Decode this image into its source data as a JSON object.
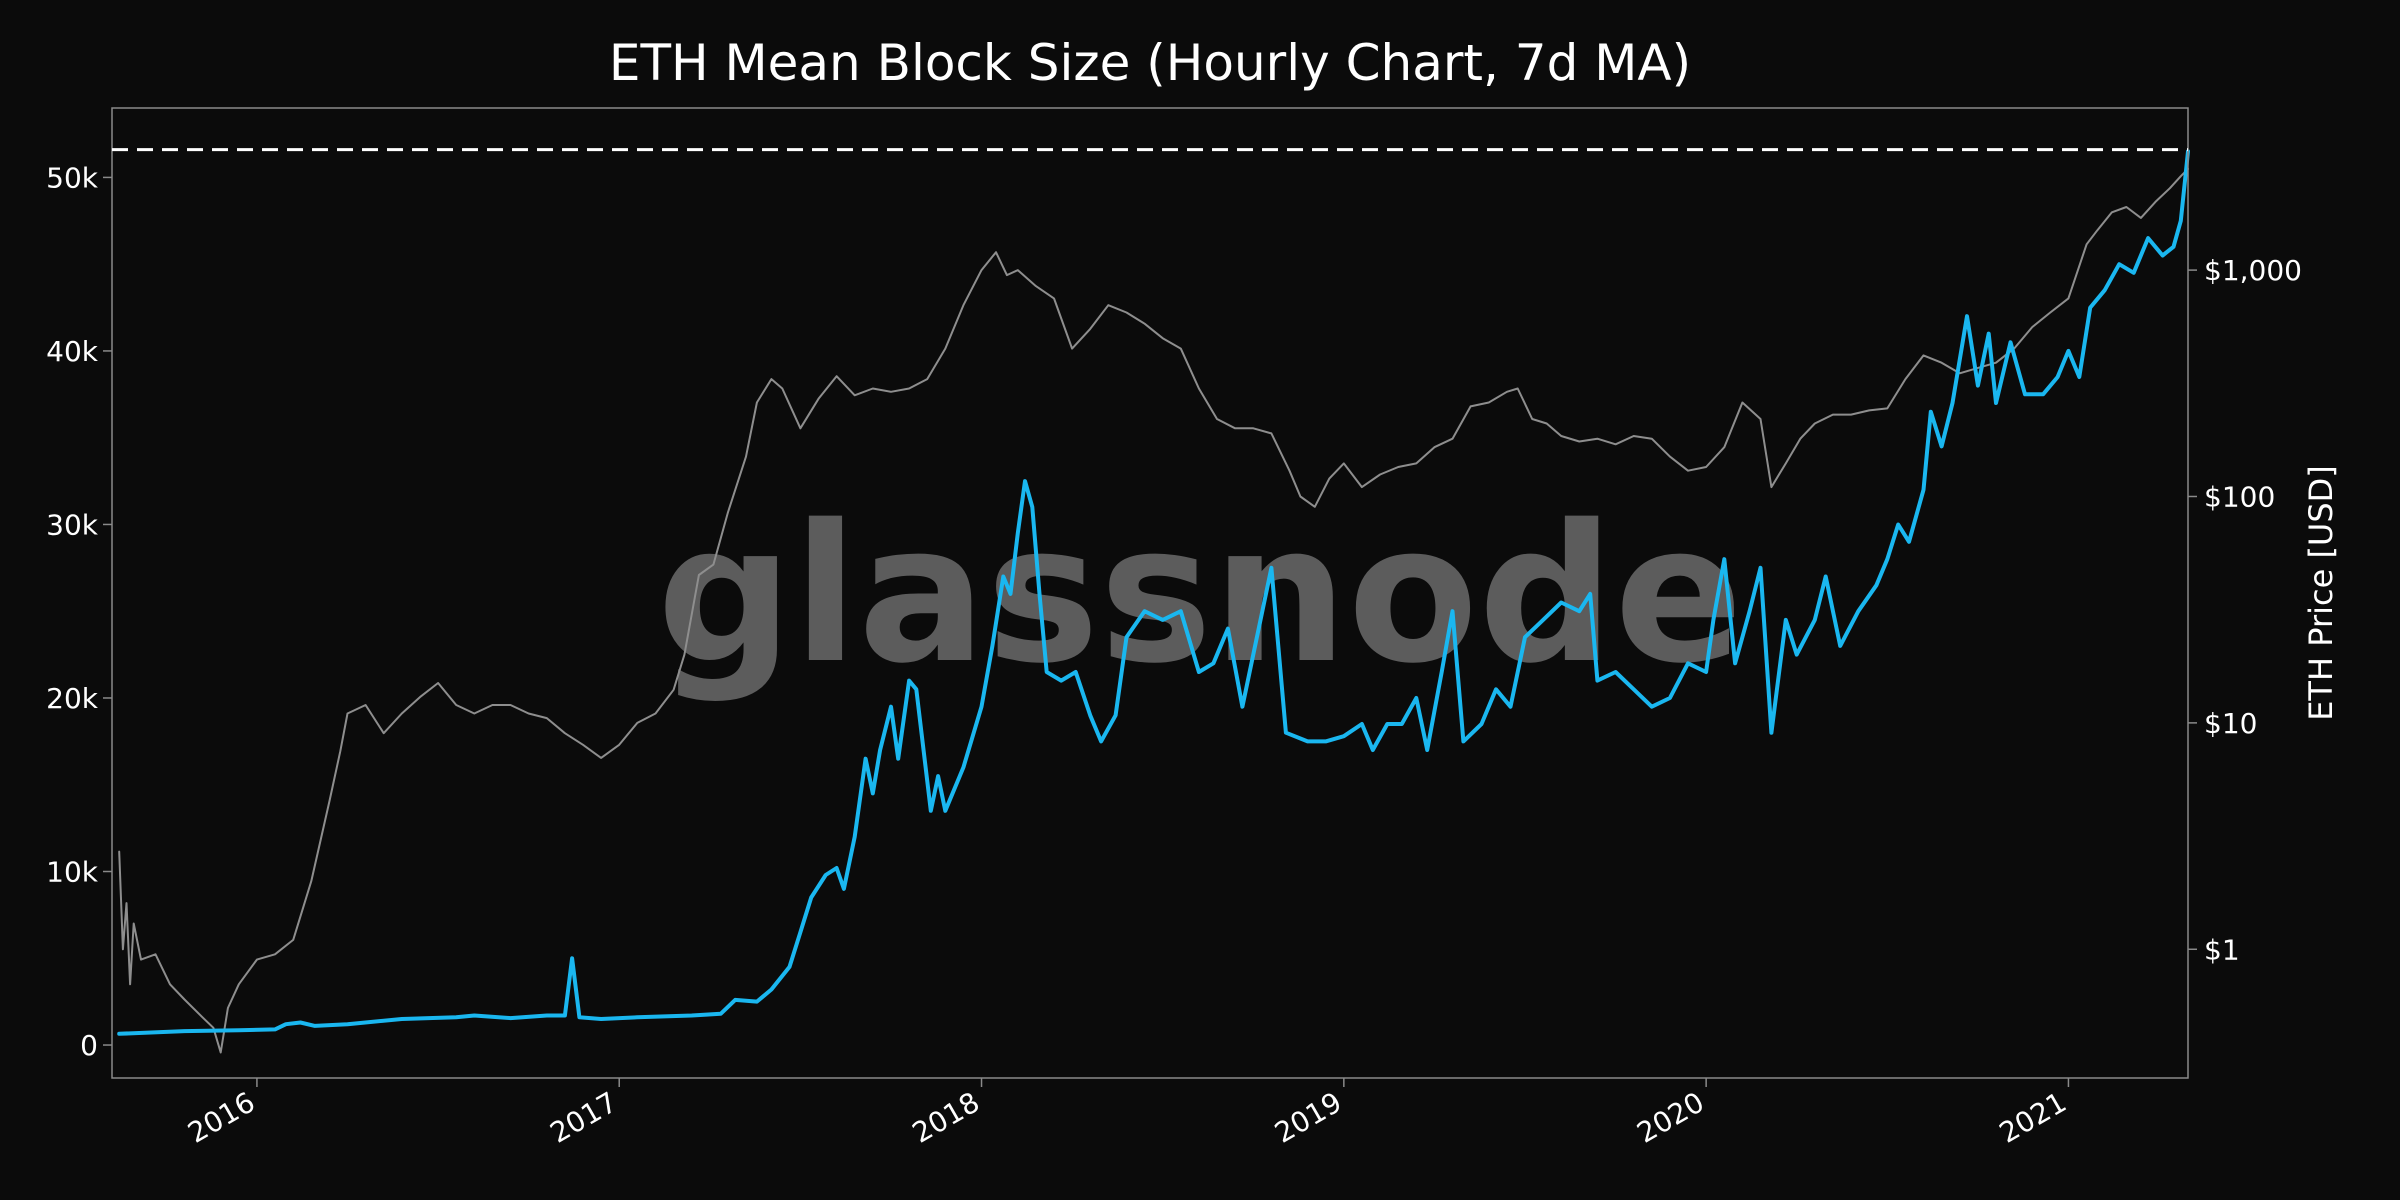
{
  "chart_data": {
    "type": "line",
    "title": "ETH Mean Block Size (Hourly Chart, 7d MA)",
    "watermark": "glassnode",
    "ylabel_left": "",
    "ylabel_right": "ETH Price [USD]",
    "x_ticks": [
      "2016",
      "2017",
      "2018",
      "2019",
      "2020",
      "2021"
    ],
    "x_tick_values": [
      2016.0,
      2017.0,
      2018.0,
      2019.0,
      2020.0,
      2021.0
    ],
    "xlim": [
      2015.6,
      2021.33
    ],
    "y_left_ticks": [
      "0",
      "10k",
      "20k",
      "30k",
      "40k",
      "50k"
    ],
    "y_left_tick_values": [
      0,
      10000,
      20000,
      30000,
      40000,
      50000
    ],
    "ylim_left": [
      -1900,
      54000
    ],
    "y_right_ticks": [
      "$1",
      "$10",
      "$100",
      "$1,000"
    ],
    "y_right_tick_values": [
      1,
      10,
      100,
      1000
    ],
    "ylim_right_log": [
      0.27,
      5200
    ],
    "reference_line": {
      "value": 51600,
      "style": "dashed"
    },
    "grid": false,
    "colors": {
      "background": "#0b0b0b",
      "block_size": "#1ab7f0",
      "price": "#8e8e8e",
      "frame": "#8a8a8a",
      "reference": "#ffffff"
    },
    "series": [
      {
        "axis": "left",
        "values": [
          [
            2015.62,
            650
          ],
          [
            2015.8,
            800
          ],
          [
            2015.95,
            850
          ],
          [
            2016.05,
            900
          ],
          [
            2016.08,
            1200
          ],
          [
            2016.12,
            1300
          ],
          [
            2016.16,
            1100
          ],
          [
            2016.25,
            1200
          ],
          [
            2016.4,
            1500
          ],
          [
            2016.55,
            1600
          ],
          [
            2016.6,
            1700
          ],
          [
            2016.7,
            1550
          ],
          [
            2016.8,
            1700
          ],
          [
            2016.85,
            1700
          ],
          [
            2016.87,
            5000
          ],
          [
            2016.89,
            1600
          ],
          [
            2016.95,
            1500
          ],
          [
            2017.05,
            1600
          ],
          [
            2017.2,
            1700
          ],
          [
            2017.28,
            1800
          ],
          [
            2017.32,
            2600
          ],
          [
            2017.38,
            2500
          ],
          [
            2017.42,
            3200
          ],
          [
            2017.47,
            4500
          ],
          [
            2017.5,
            6500
          ],
          [
            2017.53,
            8500
          ],
          [
            2017.57,
            9800
          ],
          [
            2017.6,
            10200
          ],
          [
            2017.62,
            9000
          ],
          [
            2017.65,
            12000
          ],
          [
            2017.68,
            16500
          ],
          [
            2017.7,
            14500
          ],
          [
            2017.72,
            17000
          ],
          [
            2017.75,
            19500
          ],
          [
            2017.77,
            16500
          ],
          [
            2017.8,
            21000
          ],
          [
            2017.82,
            20500
          ],
          [
            2017.86,
            13500
          ],
          [
            2017.88,
            15500
          ],
          [
            2017.9,
            13500
          ],
          [
            2017.95,
            16000
          ],
          [
            2018.0,
            19500
          ],
          [
            2018.03,
            23000
          ],
          [
            2018.06,
            27000
          ],
          [
            2018.08,
            26000
          ],
          [
            2018.1,
            29500
          ],
          [
            2018.12,
            32500
          ],
          [
            2018.14,
            31000
          ],
          [
            2018.16,
            26000
          ],
          [
            2018.18,
            21500
          ],
          [
            2018.22,
            21000
          ],
          [
            2018.26,
            21500
          ],
          [
            2018.3,
            19000
          ],
          [
            2018.33,
            17500
          ],
          [
            2018.37,
            19000
          ],
          [
            2018.4,
            23500
          ],
          [
            2018.45,
            25000
          ],
          [
            2018.5,
            24500
          ],
          [
            2018.55,
            25000
          ],
          [
            2018.6,
            21500
          ],
          [
            2018.64,
            22000
          ],
          [
            2018.68,
            24000
          ],
          [
            2018.72,
            19500
          ],
          [
            2018.76,
            23500
          ],
          [
            2018.8,
            27500
          ],
          [
            2018.84,
            18000
          ],
          [
            2018.9,
            17500
          ],
          [
            2018.95,
            17500
          ],
          [
            2019.0,
            17800
          ],
          [
            2019.05,
            18500
          ],
          [
            2019.08,
            17000
          ],
          [
            2019.12,
            18500
          ],
          [
            2019.16,
            18500
          ],
          [
            2019.2,
            20000
          ],
          [
            2019.23,
            17000
          ],
          [
            2019.27,
            21500
          ],
          [
            2019.3,
            25000
          ],
          [
            2019.33,
            17500
          ],
          [
            2019.38,
            18500
          ],
          [
            2019.42,
            20500
          ],
          [
            2019.46,
            19500
          ],
          [
            2019.5,
            23500
          ],
          [
            2019.55,
            24500
          ],
          [
            2019.6,
            25500
          ],
          [
            2019.65,
            25000
          ],
          [
            2019.68,
            26000
          ],
          [
            2019.7,
            21000
          ],
          [
            2019.75,
            21500
          ],
          [
            2019.8,
            20500
          ],
          [
            2019.85,
            19500
          ],
          [
            2019.9,
            20000
          ],
          [
            2019.95,
            22000
          ],
          [
            2020.0,
            21500
          ],
          [
            2020.02,
            24500
          ],
          [
            2020.05,
            28000
          ],
          [
            2020.08,
            22000
          ],
          [
            2020.12,
            25000
          ],
          [
            2020.15,
            27500
          ],
          [
            2020.18,
            18000
          ],
          [
            2020.22,
            24500
          ],
          [
            2020.25,
            22500
          ],
          [
            2020.3,
            24500
          ],
          [
            2020.33,
            27000
          ],
          [
            2020.37,
            23000
          ],
          [
            2020.42,
            25000
          ],
          [
            2020.47,
            26500
          ],
          [
            2020.5,
            28000
          ],
          [
            2020.53,
            30000
          ],
          [
            2020.56,
            29000
          ],
          [
            2020.6,
            32000
          ],
          [
            2020.62,
            36500
          ],
          [
            2020.65,
            34500
          ],
          [
            2020.68,
            37000
          ],
          [
            2020.72,
            42000
          ],
          [
            2020.75,
            38000
          ],
          [
            2020.78,
            41000
          ],
          [
            2020.8,
            37000
          ],
          [
            2020.84,
            40500
          ],
          [
            2020.88,
            37500
          ],
          [
            2020.93,
            37500
          ],
          [
            2020.97,
            38500
          ],
          [
            2021.0,
            40000
          ],
          [
            2021.03,
            38500
          ],
          [
            2021.06,
            42500
          ],
          [
            2021.1,
            43500
          ],
          [
            2021.14,
            45000
          ],
          [
            2021.18,
            44500
          ],
          [
            2021.22,
            46500
          ],
          [
            2021.26,
            45500
          ],
          [
            2021.29,
            46000
          ],
          [
            2021.31,
            47500
          ],
          [
            2021.33,
            51500
          ]
        ]
      },
      {
        "axis": "right",
        "values": [
          [
            2015.62,
            2.7
          ],
          [
            2015.63,
            1.0
          ],
          [
            2015.64,
            1.6
          ],
          [
            2015.65,
            0.7
          ],
          [
            2015.66,
            1.3
          ],
          [
            2015.68,
            0.9
          ],
          [
            2015.72,
            0.95
          ],
          [
            2015.76,
            0.7
          ],
          [
            2015.8,
            0.6
          ],
          [
            2015.85,
            0.5
          ],
          [
            2015.88,
            0.45
          ],
          [
            2015.9,
            0.35
          ],
          [
            2015.92,
            0.55
          ],
          [
            2015.95,
            0.7
          ],
          [
            2016.0,
            0.9
          ],
          [
            2016.05,
            0.95
          ],
          [
            2016.1,
            1.1
          ],
          [
            2016.15,
            2.0
          ],
          [
            2016.2,
            4.5
          ],
          [
            2016.23,
            7.5
          ],
          [
            2016.25,
            11
          ],
          [
            2016.3,
            12
          ],
          [
            2016.35,
            9
          ],
          [
            2016.4,
            11
          ],
          [
            2016.45,
            13
          ],
          [
            2016.5,
            15
          ],
          [
            2016.55,
            12
          ],
          [
            2016.6,
            11
          ],
          [
            2016.65,
            12
          ],
          [
            2016.7,
            12
          ],
          [
            2016.75,
            11
          ],
          [
            2016.8,
            10.5
          ],
          [
            2016.85,
            9
          ],
          [
            2016.9,
            8
          ],
          [
            2016.95,
            7
          ],
          [
            2017.0,
            8
          ],
          [
            2017.05,
            10
          ],
          [
            2017.1,
            11
          ],
          [
            2017.15,
            14
          ],
          [
            2017.18,
            20
          ],
          [
            2017.22,
            45
          ],
          [
            2017.26,
            50
          ],
          [
            2017.3,
            85
          ],
          [
            2017.35,
            150
          ],
          [
            2017.38,
            260
          ],
          [
            2017.42,
            330
          ],
          [
            2017.45,
            300
          ],
          [
            2017.5,
            200
          ],
          [
            2017.55,
            270
          ],
          [
            2017.6,
            340
          ],
          [
            2017.65,
            280
          ],
          [
            2017.7,
            300
          ],
          [
            2017.75,
            290
          ],
          [
            2017.8,
            300
          ],
          [
            2017.85,
            330
          ],
          [
            2017.9,
            450
          ],
          [
            2017.95,
            700
          ],
          [
            2018.0,
            1000
          ],
          [
            2018.04,
            1200
          ],
          [
            2018.07,
            950
          ],
          [
            2018.1,
            1000
          ],
          [
            2018.15,
            850
          ],
          [
            2018.2,
            750
          ],
          [
            2018.25,
            450
          ],
          [
            2018.3,
            550
          ],
          [
            2018.35,
            700
          ],
          [
            2018.4,
            650
          ],
          [
            2018.45,
            580
          ],
          [
            2018.5,
            500
          ],
          [
            2018.55,
            450
          ],
          [
            2018.6,
            300
          ],
          [
            2018.65,
            220
          ],
          [
            2018.7,
            200
          ],
          [
            2018.75,
            200
          ],
          [
            2018.8,
            190
          ],
          [
            2018.85,
            130
          ],
          [
            2018.88,
            100
          ],
          [
            2018.92,
            90
          ],
          [
            2018.96,
            120
          ],
          [
            2019.0,
            140
          ],
          [
            2019.05,
            110
          ],
          [
            2019.1,
            125
          ],
          [
            2019.15,
            135
          ],
          [
            2019.2,
            140
          ],
          [
            2019.25,
            165
          ],
          [
            2019.3,
            180
          ],
          [
            2019.35,
            250
          ],
          [
            2019.4,
            260
          ],
          [
            2019.45,
            290
          ],
          [
            2019.48,
            300
          ],
          [
            2019.52,
            220
          ],
          [
            2019.56,
            210
          ],
          [
            2019.6,
            185
          ],
          [
            2019.65,
            175
          ],
          [
            2019.7,
            180
          ],
          [
            2019.75,
            170
          ],
          [
            2019.8,
            185
          ],
          [
            2019.85,
            180
          ],
          [
            2019.9,
            150
          ],
          [
            2019.95,
            130
          ],
          [
            2020.0,
            135
          ],
          [
            2020.05,
            165
          ],
          [
            2020.1,
            260
          ],
          [
            2020.15,
            220
          ],
          [
            2020.18,
            110
          ],
          [
            2020.22,
            140
          ],
          [
            2020.26,
            180
          ],
          [
            2020.3,
            210
          ],
          [
            2020.35,
            230
          ],
          [
            2020.4,
            230
          ],
          [
            2020.45,
            240
          ],
          [
            2020.5,
            245
          ],
          [
            2020.55,
            330
          ],
          [
            2020.6,
            420
          ],
          [
            2020.65,
            390
          ],
          [
            2020.7,
            350
          ],
          [
            2020.75,
            370
          ],
          [
            2020.8,
            390
          ],
          [
            2020.85,
            450
          ],
          [
            2020.9,
            560
          ],
          [
            2020.95,
            650
          ],
          [
            2021.0,
            750
          ],
          [
            2021.05,
            1300
          ],
          [
            2021.08,
            1500
          ],
          [
            2021.12,
            1800
          ],
          [
            2021.16,
            1900
          ],
          [
            2021.2,
            1700
          ],
          [
            2021.24,
            2000
          ],
          [
            2021.28,
            2300
          ],
          [
            2021.31,
            2600
          ],
          [
            2021.33,
            2800
          ]
        ]
      }
    ]
  }
}
